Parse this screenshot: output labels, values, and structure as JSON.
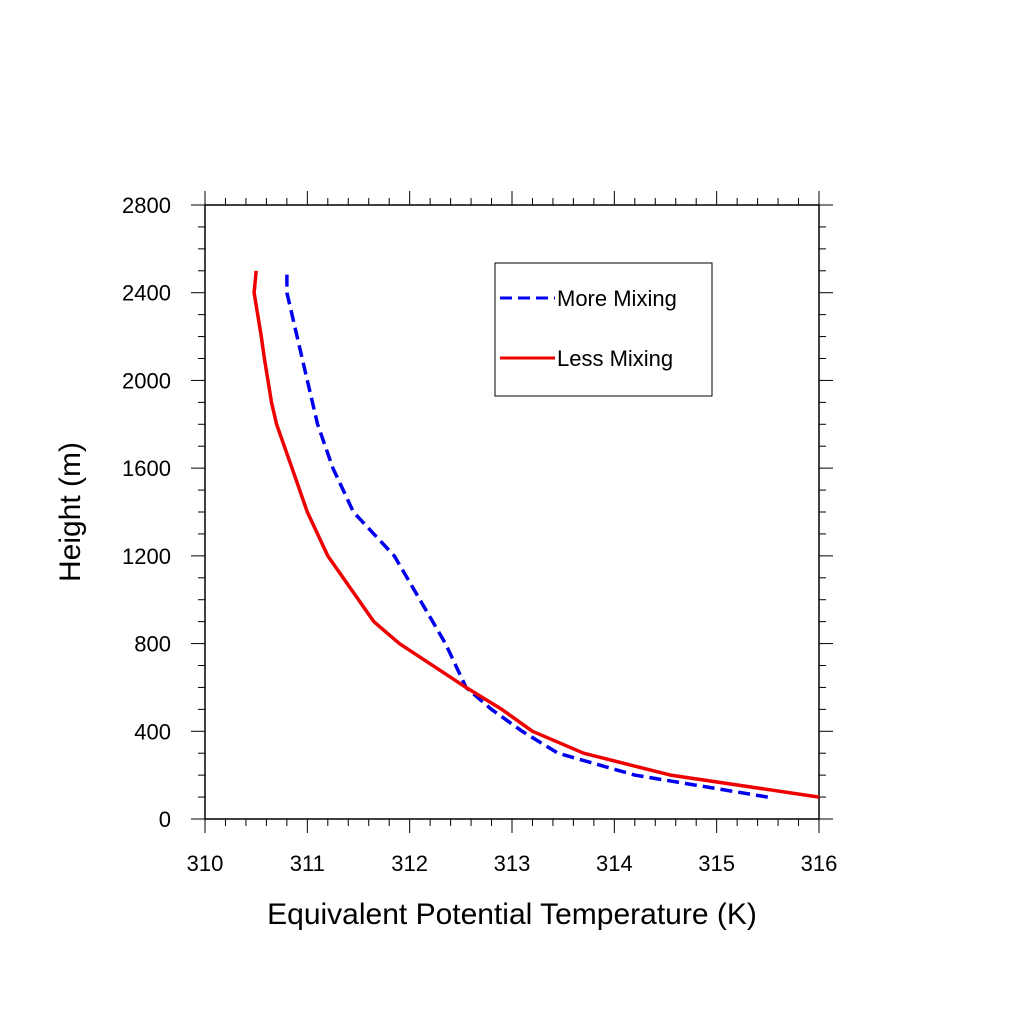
{
  "chart_data": {
    "type": "line",
    "title": "",
    "xlabel": "Equivalent Potential Temperature (K)",
    "ylabel": "Height (m)",
    "xlim": [
      310,
      316
    ],
    "ylim": [
      0,
      2800
    ],
    "xticks": [
      310,
      311,
      312,
      313,
      314,
      315,
      316
    ],
    "yticks": [
      0,
      400,
      800,
      1200,
      1600,
      2000,
      2400,
      2800
    ],
    "grid": false,
    "legend_position": "top-right",
    "series": [
      {
        "name": "More Mixing",
        "color": "#0000ee",
        "line_style": "dashed",
        "points": [
          [
            315.5,
            100
          ],
          [
            314.2,
            200
          ],
          [
            313.45,
            300
          ],
          [
            313.1,
            400
          ],
          [
            312.8,
            500
          ],
          [
            312.55,
            600
          ],
          [
            312.35,
            800
          ],
          [
            312.1,
            1000
          ],
          [
            311.85,
            1200
          ],
          [
            311.65,
            1300
          ],
          [
            311.45,
            1400
          ],
          [
            311.25,
            1600
          ],
          [
            311.1,
            1800
          ],
          [
            311.0,
            2000
          ],
          [
            310.9,
            2200
          ],
          [
            310.8,
            2400
          ],
          [
            310.8,
            2500
          ]
        ]
      },
      {
        "name": "Less Mixing",
        "color": "#ee0000",
        "line_style": "solid",
        "points": [
          [
            316.0,
            100
          ],
          [
            314.55,
            200
          ],
          [
            313.7,
            300
          ],
          [
            313.2,
            400
          ],
          [
            312.9,
            500
          ],
          [
            312.55,
            600
          ],
          [
            311.9,
            800
          ],
          [
            311.65,
            900
          ],
          [
            311.5,
            1000
          ],
          [
            311.2,
            1200
          ],
          [
            311.0,
            1400
          ],
          [
            310.85,
            1600
          ],
          [
            310.7,
            1800
          ],
          [
            310.65,
            1900
          ],
          [
            310.58,
            2100
          ],
          [
            310.55,
            2200
          ],
          [
            310.48,
            2400
          ],
          [
            310.5,
            2500
          ]
        ]
      }
    ]
  }
}
